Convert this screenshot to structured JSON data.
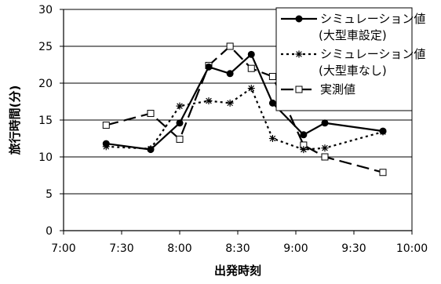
{
  "chart_data": {
    "type": "line",
    "title": "",
    "xlabel": "出発時刻",
    "ylabel": "旅行時間(分)",
    "xlim": [
      "7:00",
      "10:00"
    ],
    "ylim": [
      0,
      30
    ],
    "x_ticks": [
      "7:00",
      "7:30",
      "8:00",
      "8:30",
      "9:00",
      "9:30",
      "10:00"
    ],
    "y_ticks": [
      0,
      5,
      10,
      15,
      20,
      25,
      30
    ],
    "grid": true,
    "legend_position": "top-right",
    "series": [
      {
        "name_lines": [
          "シミュレーション値",
          "(大型車設定)"
        ],
        "line_style": "solid",
        "marker": "filled-circle",
        "color": "#000000",
        "points": [
          {
            "x": "7:22",
            "y": 11.8
          },
          {
            "x": "7:45",
            "y": 11.0
          },
          {
            "x": "8:00",
            "y": 14.6
          },
          {
            "x": "8:15",
            "y": 22.2
          },
          {
            "x": "8:26",
            "y": 21.3
          },
          {
            "x": "8:37",
            "y": 23.9
          },
          {
            "x": "8:48",
            "y": 17.3
          },
          {
            "x": "9:04",
            "y": 13.0
          },
          {
            "x": "9:15",
            "y": 14.6
          },
          {
            "x": "9:45",
            "y": 13.5
          }
        ]
      },
      {
        "name_lines": [
          "シミュレーション値",
          "(大型車なし)"
        ],
        "line_style": "dotted",
        "marker": "asterisk",
        "color": "#000000",
        "points": [
          {
            "x": "7:22",
            "y": 11.4
          },
          {
            "x": "7:45",
            "y": 11.1
          },
          {
            "x": "8:00",
            "y": 16.9
          },
          {
            "x": "8:15",
            "y": 17.6
          },
          {
            "x": "8:26",
            "y": 17.3
          },
          {
            "x": "8:37",
            "y": 19.3
          },
          {
            "x": "8:48",
            "y": 12.5
          },
          {
            "x": "9:04",
            "y": 11.0
          },
          {
            "x": "9:15",
            "y": 11.2
          },
          {
            "x": "9:45",
            "y": 13.4
          }
        ]
      },
      {
        "name_lines": [
          "実測値"
        ],
        "line_style": "long-dash",
        "marker": "open-square",
        "color": "#000000",
        "points": [
          {
            "x": "7:22",
            "y": 14.3
          },
          {
            "x": "7:45",
            "y": 15.9
          },
          {
            "x": "8:00",
            "y": 12.4
          },
          {
            "x": "8:15",
            "y": 22.4
          },
          {
            "x": "8:26",
            "y": 25.0
          },
          {
            "x": "8:37",
            "y": 22.0
          },
          {
            "x": "8:48",
            "y": 20.9
          },
          {
            "x": "9:04",
            "y": 11.6
          },
          {
            "x": "9:15",
            "y": 10.0
          },
          {
            "x": "9:45",
            "y": 7.9
          }
        ]
      }
    ]
  }
}
